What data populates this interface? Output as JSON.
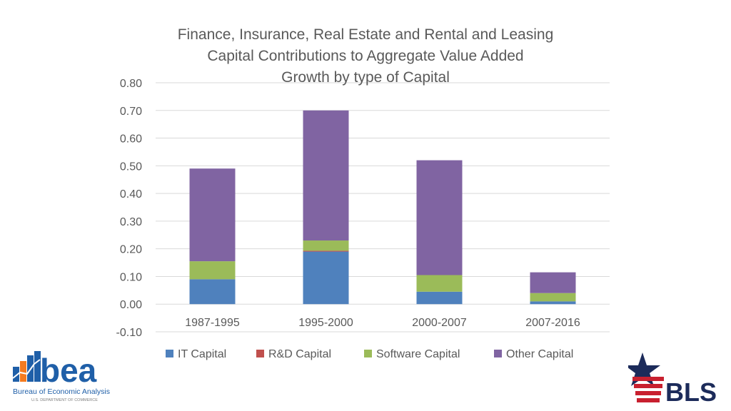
{
  "title": {
    "line1": "Finance, Insurance, Real Estate and Rental and Leasing",
    "line2": "Capital Contributions to Aggregate Value Added",
    "line3": "Growth by type of Capital"
  },
  "logos": {
    "bea_text": "bea",
    "bea_subtitle": "Bureau of Economic Analysis",
    "bea_dept": "U.S. DEPARTMENT OF COMMERCE",
    "bls_text": "BLS"
  },
  "colors": {
    "it": "#4f81bd",
    "rd": "#c0504d",
    "software": "#9bbb59",
    "other": "#8064a2",
    "grid": "#d9d9d9",
    "text": "#595959",
    "bea_blue": "#1f5fa8",
    "bea_orange": "#f47b20",
    "bls_red": "#c8202f",
    "bls_navy": "#1c2b5a"
  },
  "chart_data": {
    "type": "bar",
    "stacked": true,
    "title": "Finance, Insurance, Real Estate and Rental and Leasing Capital Contributions to Aggregate Value Added Growth by type of Capital",
    "categories": [
      "1987-1995",
      "1995-2000",
      "2000-2007",
      "2007-2016"
    ],
    "series": [
      {
        "name": "IT Capital",
        "color": "#4f81bd",
        "values": [
          0.09,
          0.19,
          0.045,
          0.01
        ]
      },
      {
        "name": "R&D Capital",
        "color": "#c0504d",
        "values": [
          0.0,
          0.003,
          0.0,
          0.0
        ]
      },
      {
        "name": "Software Capital",
        "color": "#9bbb59",
        "values": [
          0.065,
          0.037,
          0.06,
          0.03
        ]
      },
      {
        "name": "Other Capital",
        "color": "#8064a2",
        "values": [
          0.335,
          0.47,
          0.415,
          0.075
        ]
      }
    ],
    "ylim": [
      -0.1,
      0.8
    ],
    "yticks": [
      "0.80",
      "0.70",
      "0.60",
      "0.50",
      "0.40",
      "0.30",
      "0.20",
      "0.10",
      "0.00",
      "-0.10"
    ],
    "ytick_values": [
      0.8,
      0.7,
      0.6,
      0.5,
      0.4,
      0.3,
      0.2,
      0.1,
      0.0,
      -0.1
    ],
    "grid": true,
    "legend": "bottom",
    "xlabel": "",
    "ylabel": ""
  }
}
